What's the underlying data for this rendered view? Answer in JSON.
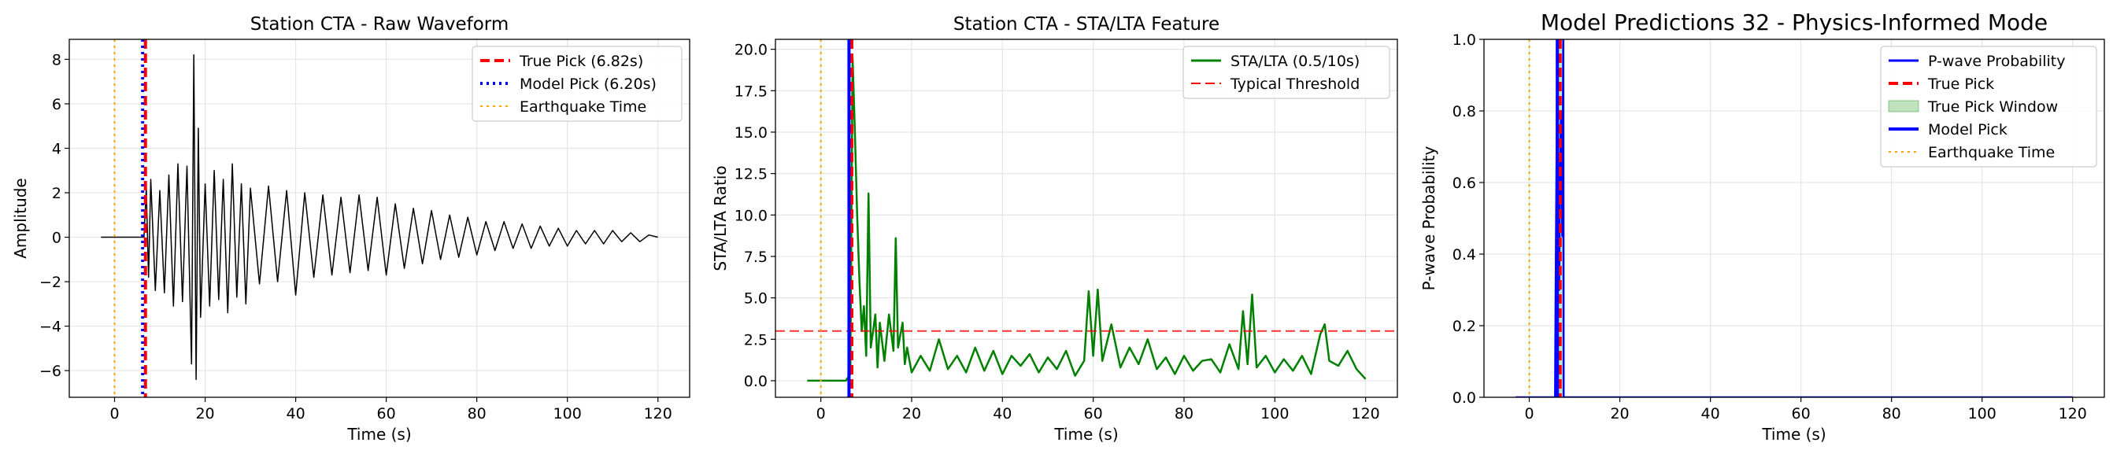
{
  "figure": {
    "background": "#ffffff"
  },
  "chart_data": [
    {
      "type": "line",
      "title": "Station CTA - Raw Waveform",
      "xlabel": "Time (s)",
      "ylabel": "Amplitude",
      "xlim": [
        -10,
        127
      ],
      "ylim": [
        -7.2,
        8.9
      ],
      "xticks": [
        0,
        20,
        40,
        60,
        80,
        100,
        120
      ],
      "xtick_labels": [
        "0",
        "20",
        "40",
        "60",
        "80",
        "100",
        "120"
      ],
      "yticks": [
        -6,
        -4,
        -2,
        0,
        2,
        4,
        6,
        8
      ],
      "ytick_labels": [
        "−6",
        "−4",
        "−2",
        "0",
        "2",
        "4",
        "6",
        "8"
      ],
      "grid": true,
      "legend_position": "top-right",
      "series": [
        {
          "kind": "waveform",
          "color": "#000000",
          "x": [
            -3,
            0,
            3,
            6.5,
            7,
            7.5,
            8,
            9,
            10,
            11,
            12,
            13,
            14,
            15,
            16,
            17,
            17.5,
            18,
            18.5,
            19,
            20,
            21,
            22,
            23,
            24,
            25,
            26,
            27,
            28,
            29,
            30,
            32,
            34,
            36,
            38,
            40,
            42,
            44,
            46,
            48,
            50,
            52,
            54,
            56,
            58,
            60,
            62,
            64,
            66,
            68,
            70,
            72,
            74,
            76,
            78,
            80,
            82,
            84,
            86,
            88,
            90,
            92,
            94,
            96,
            98,
            100,
            102,
            104,
            106,
            108,
            110,
            112,
            114,
            116,
            118,
            120
          ],
          "y": [
            0,
            0,
            0,
            0,
            2.2,
            -1.8,
            2.6,
            -2.4,
            2.1,
            -2.5,
            2.8,
            -3.1,
            3.3,
            -2.9,
            3.2,
            -5.7,
            8.2,
            -6.4,
            4.9,
            -3.6,
            2.4,
            -3.1,
            3.0,
            -2.8,
            2.6,
            -3.4,
            3.3,
            -2.7,
            2.4,
            -3.0,
            2.2,
            -2.1,
            2.3,
            -2.0,
            2.1,
            -2.6,
            2.0,
            -1.8,
            1.9,
            -1.7,
            1.8,
            -1.6,
            1.9,
            -1.5,
            1.8,
            -1.7,
            1.5,
            -1.4,
            1.3,
            -1.2,
            1.2,
            -1.0,
            1.0,
            -0.9,
            0.9,
            -0.8,
            0.7,
            -0.6,
            0.7,
            -0.5,
            0.6,
            -0.5,
            0.5,
            -0.4,
            0.4,
            -0.4,
            0.3,
            -0.3,
            0.3,
            -0.3,
            0.3,
            -0.2,
            0.2,
            -0.2,
            0.1,
            0
          ]
        },
        {
          "kind": "vline",
          "name": "True Pick (6.82s)",
          "x": 6.82,
          "color": "#ff0000",
          "style": "dashed",
          "width": 4
        },
        {
          "kind": "vline",
          "name": "Model Pick (6.20s)",
          "x": 6.2,
          "color": "#0000ff",
          "style": "dotted",
          "width": 4
        },
        {
          "kind": "vline",
          "name": "Earthquake Time",
          "x": 0,
          "color": "#ffa500",
          "style": "dotted",
          "width": 2
        }
      ]
    },
    {
      "type": "line",
      "title": "Station CTA - STA/LTA Feature",
      "xlabel": "Time (s)",
      "ylabel": "STA/LTA Ratio",
      "xlim": [
        -10,
        127
      ],
      "ylim": [
        -1.0,
        20.6
      ],
      "xticks": [
        0,
        20,
        40,
        60,
        80,
        100,
        120
      ],
      "xtick_labels": [
        "0",
        "20",
        "40",
        "60",
        "80",
        "100",
        "120"
      ],
      "yticks": [
        0,
        2.5,
        5,
        7.5,
        10,
        12.5,
        15,
        17.5,
        20
      ],
      "ytick_labels": [
        "0.0",
        "2.5",
        "5.0",
        "7.5",
        "10.0",
        "12.5",
        "15.0",
        "17.5",
        "20.0"
      ],
      "grid": true,
      "legend_position": "top-right",
      "series": [
        {
          "kind": "line",
          "name": "STA/LTA (0.5/10s)",
          "color": "#008000",
          "x": [
            -3,
            5.5,
            6.5,
            7,
            7.5,
            8,
            8.5,
            9,
            9.5,
            10,
            10.5,
            11,
            12,
            12.5,
            13,
            14,
            15,
            16,
            16.5,
            17,
            18,
            18.5,
            19,
            20,
            22,
            24,
            26,
            28,
            30,
            32,
            34,
            36,
            38,
            40,
            42,
            44,
            46,
            48,
            50,
            52,
            54,
            56,
            58,
            59,
            60,
            61,
            62,
            64,
            66,
            68,
            70,
            72,
            74,
            76,
            78,
            80,
            82,
            84,
            86,
            88,
            90,
            92,
            93,
            94,
            95,
            96,
            98,
            100,
            102,
            104,
            106,
            108,
            110,
            111,
            112,
            114,
            116,
            118,
            120
          ],
          "y": [
            0,
            0,
            0.4,
            19.5,
            15.0,
            10.0,
            6.0,
            3.0,
            4.5,
            1.5,
            11.3,
            2.0,
            4.0,
            0.8,
            3.5,
            1.2,
            4.0,
            1.8,
            8.6,
            2.0,
            3.5,
            1.0,
            2.0,
            0.5,
            1.5,
            0.6,
            2.5,
            0.7,
            1.5,
            0.5,
            2.0,
            0.6,
            1.8,
            0.4,
            1.5,
            0.9,
            1.6,
            0.5,
            1.4,
            0.7,
            1.8,
            0.3,
            1.2,
            5.4,
            1.5,
            5.5,
            1.2,
            3.4,
            0.8,
            2.0,
            1.0,
            2.5,
            0.7,
            1.4,
            0.4,
            1.5,
            0.6,
            1.2,
            1.3,
            0.5,
            2.2,
            0.7,
            4.2,
            1.0,
            5.2,
            0.8,
            1.5,
            0.5,
            1.3,
            0.6,
            1.5,
            0.4,
            2.8,
            3.4,
            1.2,
            0.9,
            1.8,
            0.7,
            0.1
          ]
        },
        {
          "kind": "hline",
          "name": "Typical Threshold",
          "y": 3,
          "color": "#ff0000",
          "style": "dashed",
          "width": 2
        },
        {
          "kind": "vline",
          "x": 6.82,
          "color": "#ff0000",
          "style": "dashed",
          "width": 4
        },
        {
          "kind": "vline",
          "x": 6.2,
          "color": "#0000ff",
          "style": "solid",
          "width": 4
        },
        {
          "kind": "vline",
          "x": 0,
          "color": "#ffa500",
          "style": "dotted",
          "width": 2
        }
      ]
    },
    {
      "type": "line",
      "title": "Model Predictions 32 - Physics-Informed Mode",
      "xlabel": "Time (s)",
      "ylabel": "P-wave Probability",
      "xlim": [
        -10,
        127
      ],
      "ylim": [
        0,
        1.0
      ],
      "xticks": [
        0,
        20,
        40,
        60,
        80,
        100,
        120
      ],
      "xtick_labels": [
        "0",
        "20",
        "40",
        "60",
        "80",
        "100",
        "120"
      ],
      "yticks": [
        0,
        0.2,
        0.4,
        0.6,
        0.8,
        1.0
      ],
      "ytick_labels": [
        "0.0",
        "0.2",
        "0.4",
        "0.6",
        "0.8",
        "1.0"
      ],
      "grid": true,
      "legend_position": "top-right",
      "series": [
        {
          "kind": "line",
          "name": "P-wave Probability",
          "color": "#0000ff",
          "x": [
            -3,
            5.7,
            5.8,
            6.2,
            6.6,
            6.7,
            7.0,
            7.3,
            7.5,
            7.6,
            120
          ],
          "y": [
            0,
            0,
            0.25,
            1.0,
            0.3,
            0.5,
            0.8,
            0.45,
            1.0,
            0,
            0
          ]
        },
        {
          "kind": "vline",
          "name": "True Pick",
          "x": 6.82,
          "color": "#ff0000",
          "style": "dashed",
          "width": 4
        },
        {
          "kind": "band",
          "name": "True Pick Window",
          "x0": 5.8,
          "x1": 7.8,
          "color": "#2ca02c"
        },
        {
          "kind": "vline",
          "name": "Model Pick",
          "x": 6.2,
          "color": "#0000ff",
          "style": "solid",
          "width": 4
        },
        {
          "kind": "vline",
          "name": "Earthquake Time",
          "x": 0,
          "color": "#ffa500",
          "style": "dotted",
          "width": 2
        }
      ]
    }
  ]
}
